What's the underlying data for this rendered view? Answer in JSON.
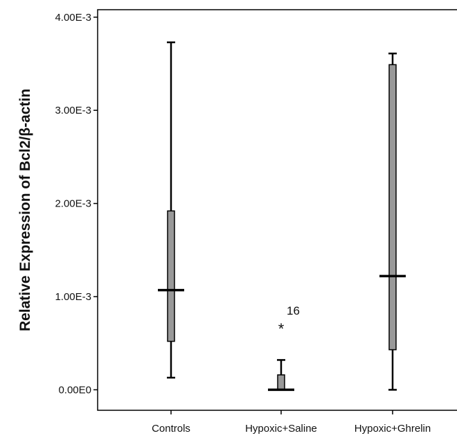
{
  "chart_data": {
    "type": "boxplot",
    "ylabel": "Relative Expression of Bcl2/β-actin",
    "xlabel": "",
    "ylim": [
      -0.00022,
      0.00408
    ],
    "yticks": [
      {
        "value": 0.0,
        "label": "0.00E0"
      },
      {
        "value": 0.001,
        "label": "1.00E-3"
      },
      {
        "value": 0.002,
        "label": "2.00E-3"
      },
      {
        "value": 0.003,
        "label": "3.00E-3"
      },
      {
        "value": 0.004,
        "label": "4.00E-3"
      }
    ],
    "categories": [
      "Controls",
      "Hypoxic+Saline",
      "Hypoxic+Ghrelin"
    ],
    "boxes": [
      {
        "category": "Controls",
        "min": 0.00013,
        "q1": 0.00052,
        "median": 0.00107,
        "q3": 0.00192,
        "max": 0.00373
      },
      {
        "category": "Hypoxic+Saline",
        "min": 0.0,
        "q1": 0.0,
        "median": 0.0,
        "q3": 0.00016,
        "max": 0.00032,
        "outliers": [
          {
            "value": 0.00068,
            "label": "16",
            "marker": "*"
          }
        ]
      },
      {
        "category": "Hypoxic+Ghrelin",
        "min": 0.0,
        "q1": 0.00043,
        "median": 0.00122,
        "q3": 0.00349,
        "max": 0.00361
      }
    ],
    "colors": {
      "box_fill": "#999999",
      "stroke": "#000000"
    },
    "grid": false
  }
}
